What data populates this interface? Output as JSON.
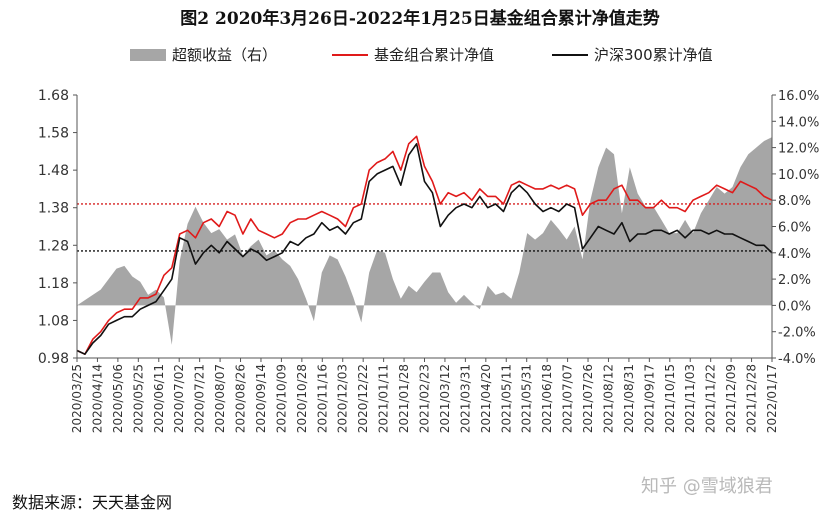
{
  "page": {
    "source_note": "数据来源：天天基金网",
    "watermark": "知乎 @雪域狼君"
  },
  "chart_data": {
    "type": "line",
    "title": "图2 2020年3月26日-2022年1月25日基金组合累计净值走势",
    "xlabel": "",
    "ylabel": "",
    "ylim": [
      0.98,
      1.68
    ],
    "y2lim": [
      -4.0,
      16.0
    ],
    "y_ticks": [
      "0.98",
      "1.08",
      "1.18",
      "1.28",
      "1.38",
      "1.48",
      "1.58",
      "1.68"
    ],
    "y2_ticks": [
      "-4.0%",
      "-2.0%",
      "0.0%",
      "2.0%",
      "4.0%",
      "6.0%",
      "8.0%",
      "10.0%",
      "12.0%",
      "14.0%",
      "16.0%"
    ],
    "x_tick_labels": [
      "2020/03/25",
      "2020/04/14",
      "2020/05/06",
      "2020/05/25",
      "2020/06/11",
      "2020/07/02",
      "2020/07/21",
      "2020/08/07",
      "2020/08/26",
      "2020/09/14",
      "2020/10/09",
      "2020/10/28",
      "2020/11/16",
      "2020/12/03",
      "2020/12/22",
      "2021/01/11",
      "2021/01/28",
      "2021/02/23",
      "2021/03/12",
      "2021/03/31",
      "2021/04/20",
      "2021/05/11",
      "2021/05/31",
      "2021/06/18",
      "2021/07/07",
      "2021/07/26",
      "2021/08/12",
      "2021/08/31",
      "2021/09/17",
      "2021/10/15",
      "2021/11/03",
      "2021/11/22",
      "2021/12/09",
      "2021/12/28",
      "2022/01/17"
    ],
    "legend": {
      "position": "top"
    },
    "grid": false,
    "reference_lines": [
      {
        "y": 1.39,
        "color": "#d62020"
      },
      {
        "y": 1.265,
        "color": "#111111"
      }
    ],
    "series": [
      {
        "name": "超额收益（右）",
        "axis": "right",
        "style": "area",
        "color": "#a6a6a6",
        "values": [
          0.0,
          0.4,
          0.8,
          1.2,
          2.0,
          2.8,
          3.0,
          2.2,
          1.8,
          0.8,
          1.2,
          0.6,
          -3.0,
          3.4,
          6.2,
          7.5,
          6.3,
          5.5,
          5.8,
          5.0,
          5.4,
          3.8,
          4.5,
          5.0,
          3.8,
          4.2,
          3.5,
          3.0,
          2.0,
          0.5,
          -1.2,
          2.5,
          3.8,
          3.5,
          2.2,
          0.6,
          -1.3,
          2.5,
          4.2,
          4.0,
          2.0,
          0.5,
          1.5,
          1.0,
          1.8,
          2.5,
          2.5,
          1.0,
          0.2,
          0.8,
          0.2,
          -0.3,
          1.5,
          0.8,
          1.0,
          0.5,
          2.5,
          5.5,
          5.0,
          5.5,
          6.5,
          5.8,
          5.0,
          6.0,
          3.5,
          8.0,
          10.5,
          12.0,
          11.5,
          7.0,
          10.5,
          8.5,
          7.5,
          7.5,
          6.5,
          5.5,
          5.5,
          6.5,
          5.5,
          7.0,
          8.0,
          9.0,
          8.5,
          9.0,
          10.5,
          11.5,
          12.0,
          12.5,
          12.8
        ]
      },
      {
        "name": "基金组合累计净值",
        "axis": "left",
        "style": "line",
        "color": "#e01a1a",
        "values": [
          1.0,
          0.99,
          1.03,
          1.05,
          1.08,
          1.1,
          1.11,
          1.11,
          1.14,
          1.14,
          1.15,
          1.2,
          1.22,
          1.31,
          1.32,
          1.3,
          1.34,
          1.35,
          1.33,
          1.37,
          1.36,
          1.31,
          1.35,
          1.32,
          1.31,
          1.3,
          1.31,
          1.34,
          1.35,
          1.35,
          1.36,
          1.37,
          1.36,
          1.35,
          1.33,
          1.38,
          1.39,
          1.48,
          1.5,
          1.51,
          1.53,
          1.48,
          1.55,
          1.57,
          1.49,
          1.45,
          1.39,
          1.42,
          1.41,
          1.42,
          1.4,
          1.43,
          1.41,
          1.41,
          1.39,
          1.44,
          1.45,
          1.44,
          1.43,
          1.43,
          1.44,
          1.43,
          1.44,
          1.43,
          1.36,
          1.39,
          1.4,
          1.4,
          1.43,
          1.44,
          1.4,
          1.4,
          1.38,
          1.38,
          1.4,
          1.38,
          1.38,
          1.37,
          1.4,
          1.41,
          1.42,
          1.44,
          1.43,
          1.42,
          1.45,
          1.44,
          1.43,
          1.41,
          1.4
        ]
      },
      {
        "name": "沪深300累计净值",
        "axis": "left",
        "style": "line",
        "color": "#111111",
        "values": [
          1.0,
          0.99,
          1.02,
          1.04,
          1.07,
          1.08,
          1.09,
          1.09,
          1.11,
          1.12,
          1.13,
          1.16,
          1.19,
          1.3,
          1.29,
          1.23,
          1.26,
          1.28,
          1.26,
          1.29,
          1.27,
          1.25,
          1.27,
          1.26,
          1.24,
          1.25,
          1.26,
          1.29,
          1.28,
          1.3,
          1.31,
          1.34,
          1.32,
          1.33,
          1.31,
          1.34,
          1.35,
          1.45,
          1.47,
          1.48,
          1.49,
          1.44,
          1.52,
          1.55,
          1.45,
          1.42,
          1.33,
          1.36,
          1.38,
          1.39,
          1.38,
          1.41,
          1.38,
          1.39,
          1.37,
          1.42,
          1.44,
          1.42,
          1.39,
          1.37,
          1.38,
          1.37,
          1.39,
          1.38,
          1.27,
          1.3,
          1.33,
          1.32,
          1.31,
          1.34,
          1.29,
          1.31,
          1.31,
          1.32,
          1.32,
          1.31,
          1.32,
          1.3,
          1.32,
          1.32,
          1.31,
          1.32,
          1.31,
          1.31,
          1.3,
          1.29,
          1.28,
          1.28,
          1.26
        ]
      }
    ]
  }
}
